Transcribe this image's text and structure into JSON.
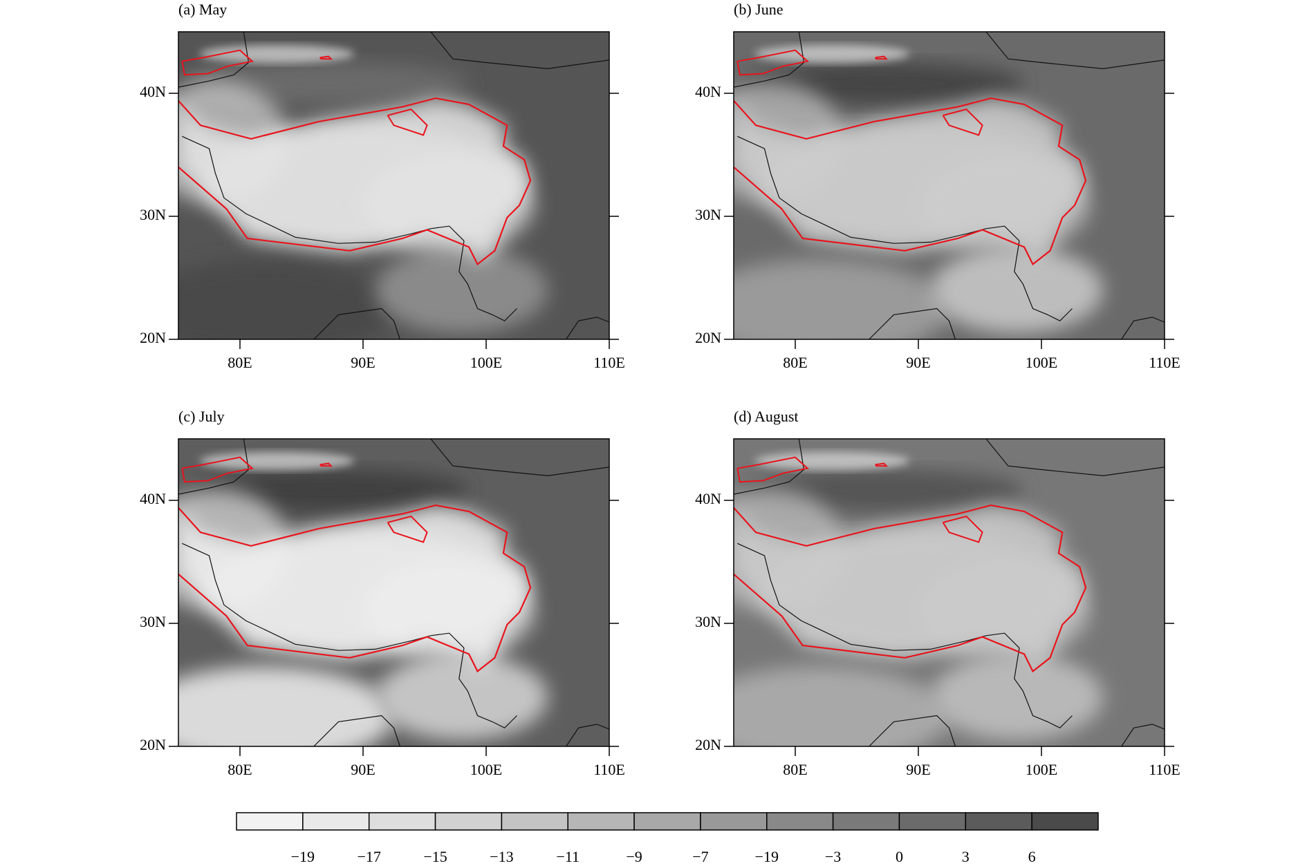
{
  "panels": [
    {
      "title": "(a) May"
    },
    {
      "title": "(b) June"
    },
    {
      "title": "(c) July"
    },
    {
      "title": "(d) August"
    }
  ],
  "axes": {
    "xlim": [
      75,
      110
    ],
    "ylim": [
      20,
      45
    ],
    "xticks": [
      {
        "value": 80,
        "label": "80E"
      },
      {
        "value": 90,
        "label": "90E"
      },
      {
        "value": 100,
        "label": "100E"
      },
      {
        "value": 110,
        "label": "110E"
      }
    ],
    "yticks": [
      {
        "value": 20,
        "label": "20N"
      },
      {
        "value": 30,
        "label": "30N"
      },
      {
        "value": 40,
        "label": "40N"
      }
    ]
  },
  "colorbar": {
    "levels": [
      {
        "value": -19,
        "label": "−19"
      },
      {
        "value": -17,
        "label": "−17"
      },
      {
        "value": -15,
        "label": "−15"
      },
      {
        "value": -13,
        "label": "−13"
      },
      {
        "value": -11,
        "label": "−11"
      },
      {
        "value": -9,
        "label": "−9"
      },
      {
        "value": -7,
        "label": "−7"
      },
      {
        "value": -19,
        "label": "−19"
      },
      {
        "value": -3,
        "label": "−3"
      },
      0,
      3,
      6
    ],
    "colors": [
      "#f2f2f2",
      "#e9e9e9",
      "#dedede",
      "#d2d2d2",
      "#c4c4c4",
      "#b6b6b6",
      "#a8a8a8",
      "#999999",
      "#898989",
      "#7a7a7a",
      "#6b6b6b",
      "#5b5b5b",
      "#4a4a4a"
    ]
  }
}
